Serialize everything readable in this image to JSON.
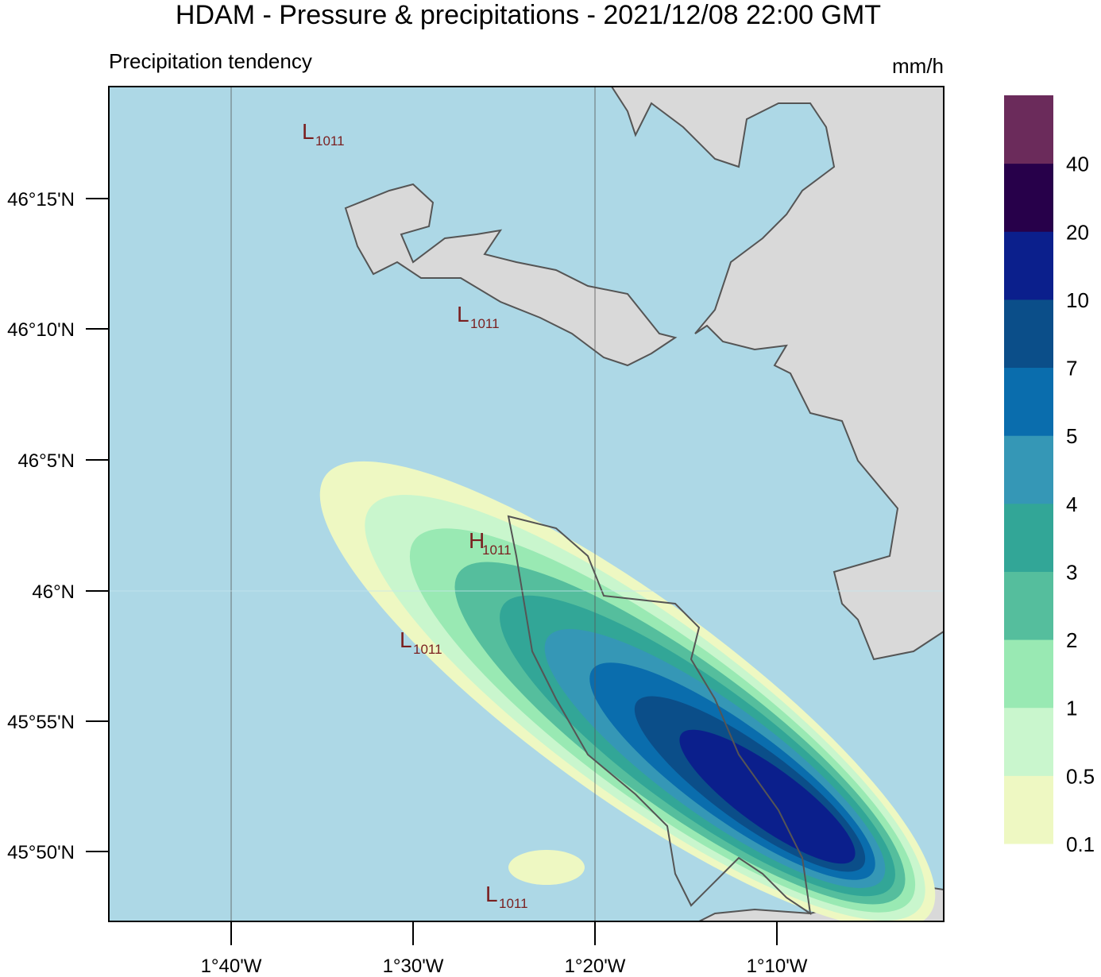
{
  "title": "HDAM - Pressure & precipitations  -  2021/12/08  22:00 GMT",
  "subtitle": "Precipitation tendency",
  "unit": "mm/h",
  "latitude_labels": [
    "46°15'N",
    "46°10'N",
    "46°5'N",
    "46°N",
    "45°55'N",
    "45°50'N"
  ],
  "longitude_labels": [
    "1°40'W",
    "1°30'W",
    "1°20'W",
    "1°10'W"
  ],
  "pressure_labels": [
    {
      "letter": "L",
      "value": "1011"
    },
    {
      "letter": "L",
      "value": "1011"
    },
    {
      "letter": "H",
      "value": "1011"
    },
    {
      "letter": "L",
      "value": "1011"
    },
    {
      "letter": "L",
      "value": "1011"
    }
  ],
  "colorbar": {
    "labels": [
      "0.1",
      "0.5",
      "1",
      "2",
      "3",
      "4",
      "5",
      "7",
      "10",
      "20",
      "40"
    ],
    "colors": [
      "#eef8c2",
      "#c9f6cd",
      "#99e9b3",
      "#55be9d",
      "#32a697",
      "#3597b6",
      "#0a6dad",
      "#0b4e89",
      "#0b1f8c",
      "#27004a",
      "#6b2b5b"
    ]
  }
}
